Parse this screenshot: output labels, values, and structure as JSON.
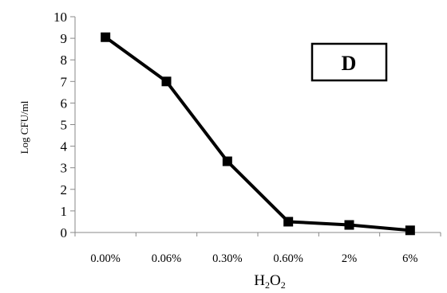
{
  "chart_data": {
    "type": "line",
    "categories": [
      "0.00%",
      "0.06%",
      "0.30%",
      "0.60%",
      "2%",
      "6%"
    ],
    "series": [
      {
        "values": [
          9.05,
          7.0,
          3.3,
          0.5,
          0.35,
          0.1
        ]
      }
    ],
    "ylabel": "Log CFU/ml",
    "xlabel_main": "H",
    "xlabel_sub1": "2",
    "xlabel_mid": "O",
    "xlabel_sub2": "2",
    "ylim": [
      0,
      10
    ],
    "yticks": [
      0,
      1,
      2,
      3,
      4,
      5,
      6,
      7,
      8,
      9,
      10
    ],
    "panel_label": "D",
    "grid": false,
    "line_color": "#000000",
    "marker": "square"
  }
}
